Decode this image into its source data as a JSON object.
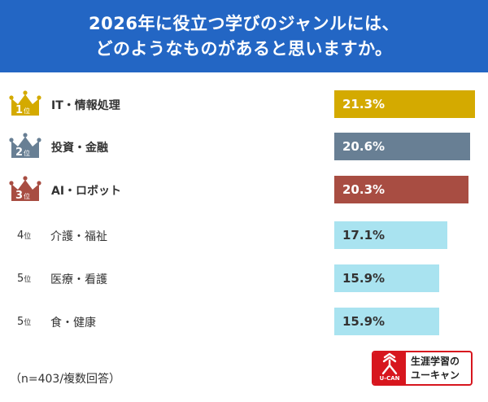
{
  "header": {
    "line1": "2026年に役立つ学びのジャンルには、",
    "line2": "どのようなものがあると思いますか。"
  },
  "chart_data": {
    "type": "bar",
    "orientation": "horizontal",
    "title": "2026年に役立つ学びのジャンルには、どのようなものがあると思いますか。",
    "categories": [
      "IT・情報処理",
      "投資・金融",
      "AI・ロボット",
      "介護・福祉",
      "医療・看護",
      "食・健康"
    ],
    "ranks": [
      "1",
      "2",
      "3",
      "4",
      "5",
      "5"
    ],
    "rank_suffix": "位",
    "values": [
      21.3,
      20.6,
      20.3,
      17.1,
      15.9,
      15.9
    ],
    "value_labels": [
      "21.3%",
      "20.6%",
      "20.3%",
      "17.1%",
      "15.9%",
      "15.9%"
    ],
    "colors": [
      "#d4aa00",
      "#687f94",
      "#a84d42",
      "#a9e3f0",
      "#a9e3f0",
      "#a9e3f0"
    ],
    "label_colors": [
      "#ffffff",
      "#ffffff",
      "#ffffff",
      "#333333",
      "#333333",
      "#333333"
    ],
    "xlim": [
      0,
      21.3
    ],
    "unit": "%"
  },
  "footer": {
    "note": "（n=403/複数回答）"
  },
  "logo": {
    "brand": "U-CAN",
    "line1": "生涯学習の",
    "line2": "ユーキャン"
  }
}
